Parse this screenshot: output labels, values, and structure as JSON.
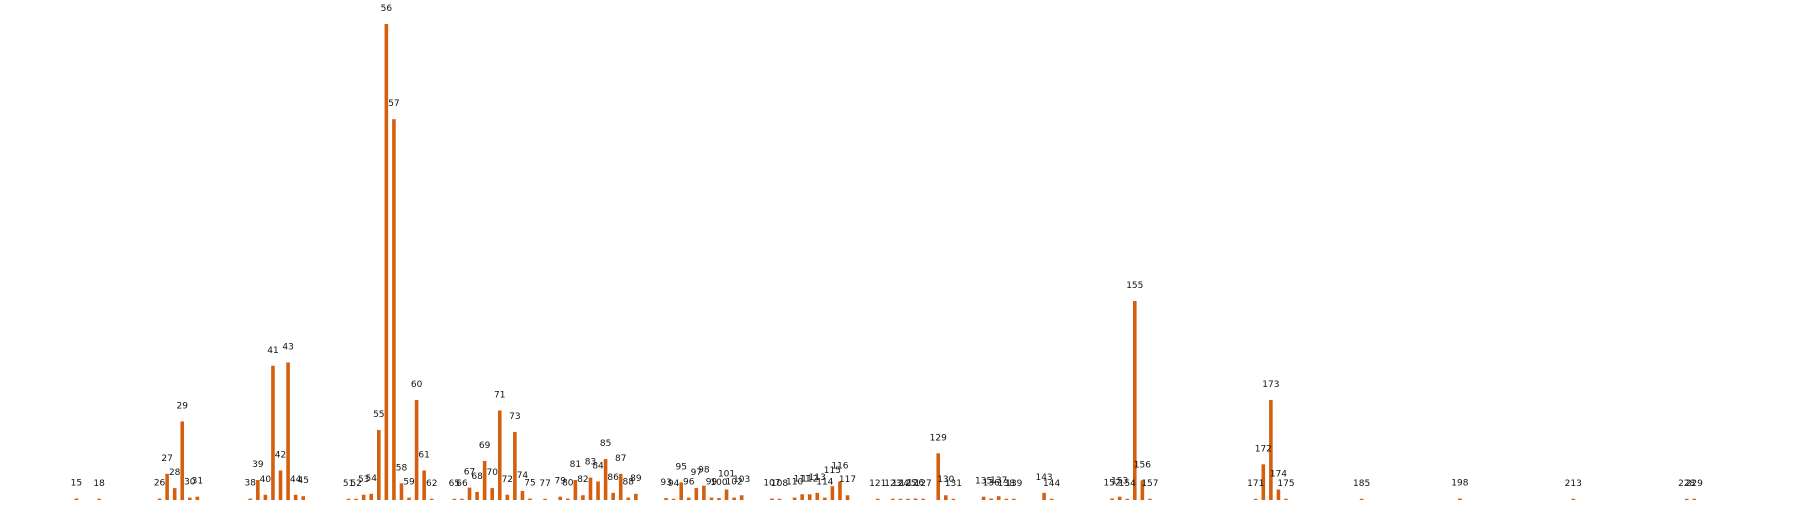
{
  "chart_data": {
    "type": "bar",
    "title": "",
    "xlabel": "",
    "ylabel": "",
    "ylim": [
      0,
      100
    ],
    "grid": false,
    "legend": "none",
    "color": "#D45F0E",
    "bars": [
      {
        "x": 15,
        "value": 0.3,
        "label": "15"
      },
      {
        "x": 18,
        "value": 0.2,
        "label": "18"
      },
      {
        "x": 26,
        "value": 0.3,
        "label": "26"
      },
      {
        "x": 27,
        "value": 5.5,
        "label": "27"
      },
      {
        "x": 28,
        "value": 2.5,
        "label": "28"
      },
      {
        "x": 29,
        "value": 16.5,
        "label": "29"
      },
      {
        "x": 30,
        "value": 0.5,
        "label": "30"
      },
      {
        "x": 31,
        "value": 0.7,
        "label": "31"
      },
      {
        "x": 38,
        "value": 0.3,
        "label": "38"
      },
      {
        "x": 39,
        "value": 4.2,
        "label": "39"
      },
      {
        "x": 40,
        "value": 1.1,
        "label": "40"
      },
      {
        "x": 41,
        "value": 28.2,
        "label": "41"
      },
      {
        "x": 42,
        "value": 6.2,
        "label": "42"
      },
      {
        "x": 43,
        "value": 28.9,
        "label": "43"
      },
      {
        "x": 44,
        "value": 1.1,
        "label": "44"
      },
      {
        "x": 45,
        "value": 0.8,
        "label": "45"
      },
      {
        "x": 51,
        "value": 0.1,
        "label": "51"
      },
      {
        "x": 52,
        "value": 0.1,
        "label": "52"
      },
      {
        "x": 53,
        "value": 1.1,
        "label": "53"
      },
      {
        "x": 54,
        "value": 1.3,
        "label": "54"
      },
      {
        "x": 55,
        "value": 14.7,
        "label": "55"
      },
      {
        "x": 56,
        "value": 100,
        "label": "56"
      },
      {
        "x": 57,
        "value": 80,
        "label": "57"
      },
      {
        "x": 58,
        "value": 3.5,
        "label": "58"
      },
      {
        "x": 59,
        "value": 0.5,
        "label": "59"
      },
      {
        "x": 60,
        "value": 21,
        "label": "60"
      },
      {
        "x": 61,
        "value": 6.2,
        "label": "61"
      },
      {
        "x": 62,
        "value": 0.2,
        "label": "62"
      },
      {
        "x": 65,
        "value": 0.2,
        "label": "65"
      },
      {
        "x": 66,
        "value": 0.2,
        "label": "66"
      },
      {
        "x": 67,
        "value": 2.6,
        "label": "67"
      },
      {
        "x": 68,
        "value": 1.7,
        "label": "68"
      },
      {
        "x": 69,
        "value": 8.2,
        "label": "69"
      },
      {
        "x": 70,
        "value": 2.5,
        "label": "70"
      },
      {
        "x": 71,
        "value": 18.8,
        "label": "71"
      },
      {
        "x": 72,
        "value": 1.1,
        "label": "72"
      },
      {
        "x": 73,
        "value": 14.3,
        "label": "73"
      },
      {
        "x": 74,
        "value": 1.9,
        "label": "74"
      },
      {
        "x": 75,
        "value": 0.3,
        "label": "75"
      },
      {
        "x": 77,
        "value": 0.1,
        "label": "77"
      },
      {
        "x": 79,
        "value": 0.7,
        "label": "79"
      },
      {
        "x": 80,
        "value": 0.3,
        "label": "80"
      },
      {
        "x": 81,
        "value": 4.2,
        "label": "81"
      },
      {
        "x": 82,
        "value": 1,
        "label": "82"
      },
      {
        "x": 83,
        "value": 4.7,
        "label": "83"
      },
      {
        "x": 84,
        "value": 3.9,
        "label": "84"
      },
      {
        "x": 85,
        "value": 8.6,
        "label": "85"
      },
      {
        "x": 86,
        "value": 1.5,
        "label": "86"
      },
      {
        "x": 87,
        "value": 5.5,
        "label": "87"
      },
      {
        "x": 88,
        "value": 0.5,
        "label": "88"
      },
      {
        "x": 89,
        "value": 1.3,
        "label": "89"
      },
      {
        "x": 93,
        "value": 0.4,
        "label": "93"
      },
      {
        "x": 94,
        "value": 0.2,
        "label": "94"
      },
      {
        "x": 95,
        "value": 3.7,
        "label": "95"
      },
      {
        "x": 96,
        "value": 0.5,
        "label": "96"
      },
      {
        "x": 97,
        "value": 2.5,
        "label": "97"
      },
      {
        "x": 98,
        "value": 3,
        "label": "98"
      },
      {
        "x": 99,
        "value": 0.5,
        "label": "99"
      },
      {
        "x": 100,
        "value": 0.4,
        "label": "100"
      },
      {
        "x": 101,
        "value": 2.2,
        "label": "101"
      },
      {
        "x": 102,
        "value": 0.5,
        "label": "102"
      },
      {
        "x": 103,
        "value": 1,
        "label": "103"
      },
      {
        "x": 107,
        "value": 0.3,
        "label": "107"
      },
      {
        "x": 108,
        "value": 0.2,
        "label": "108"
      },
      {
        "x": 110,
        "value": 0.5,
        "label": "110"
      },
      {
        "x": 111,
        "value": 1.2,
        "label": "111"
      },
      {
        "x": 112,
        "value": 1.2,
        "label": "112"
      },
      {
        "x": 113,
        "value": 1.5,
        "label": "113"
      },
      {
        "x": 114,
        "value": 0.5,
        "label": "114"
      },
      {
        "x": 115,
        "value": 2.9,
        "label": "115"
      },
      {
        "x": 116,
        "value": 3.9,
        "label": "116"
      },
      {
        "x": 117,
        "value": 1,
        "label": "117"
      },
      {
        "x": 121,
        "value": 0.1,
        "label": "121"
      },
      {
        "x": 123,
        "value": 0.1,
        "label": "123"
      },
      {
        "x": 124,
        "value": 0.1,
        "label": "124"
      },
      {
        "x": 125,
        "value": 0.2,
        "label": "125"
      },
      {
        "x": 126,
        "value": 0.3,
        "label": "126"
      },
      {
        "x": 127,
        "value": 0.1,
        "label": "127"
      },
      {
        "x": 129,
        "value": 9.8,
        "label": "129"
      },
      {
        "x": 130,
        "value": 1,
        "label": "130"
      },
      {
        "x": 131,
        "value": 0.1,
        "label": "131"
      },
      {
        "x": 135,
        "value": 0.7,
        "label": "135"
      },
      {
        "x": 136,
        "value": 0.3,
        "label": "136"
      },
      {
        "x": 137,
        "value": 0.8,
        "label": "137"
      },
      {
        "x": 138,
        "value": 0.1,
        "label": "138"
      },
      {
        "x": 139,
        "value": 0.1,
        "label": "139"
      },
      {
        "x": 143,
        "value": 1.5,
        "label": "143"
      },
      {
        "x": 144,
        "value": 0.2,
        "label": "144"
      },
      {
        "x": 152,
        "value": 0.3,
        "label": "152"
      },
      {
        "x": 153,
        "value": 0.7,
        "label": "153"
      },
      {
        "x": 154,
        "value": 0.2,
        "label": "154"
      },
      {
        "x": 155,
        "value": 41.8,
        "label": "155"
      },
      {
        "x": 156,
        "value": 4.1,
        "label": "156"
      },
      {
        "x": 157,
        "value": 0.2,
        "label": "157"
      },
      {
        "x": 171,
        "value": 0.2,
        "label": "171"
      },
      {
        "x": 172,
        "value": 7.5,
        "label": "172"
      },
      {
        "x": 173,
        "value": 21,
        "label": "173"
      },
      {
        "x": 174,
        "value": 2.2,
        "label": "174"
      },
      {
        "x": 175,
        "value": 0.2,
        "label": "175"
      },
      {
        "x": 185,
        "value": 0.1,
        "label": "185"
      },
      {
        "x": 198,
        "value": 0.3,
        "label": "198"
      },
      {
        "x": 213,
        "value": 0.2,
        "label": "213"
      },
      {
        "x": 228,
        "value": 0.1,
        "label": "228"
      },
      {
        "x": 229,
        "value": 0.1,
        "label": "229"
      }
    ]
  }
}
